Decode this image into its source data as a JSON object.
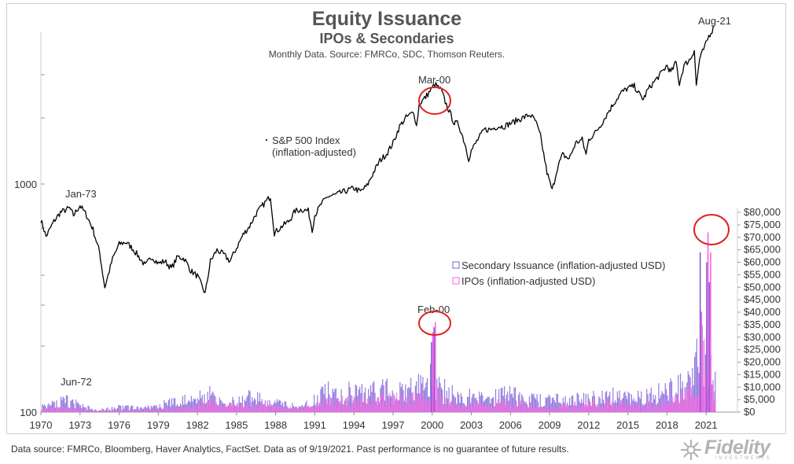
{
  "chart_data": {
    "type": "line+bar",
    "title": "Equity Issuance",
    "subtitle": "IPOs & Secondaries",
    "source_line": "Monthly Data. Source: FMRCo, SDC, Thomson Reuters.",
    "x_ticks": [
      "1970",
      "1973",
      "1976",
      "1979",
      "1982",
      "1985",
      "1988",
      "1991",
      "1994",
      "1997",
      "2000",
      "2003",
      "2006",
      "2009",
      "2012",
      "2015",
      "2018",
      "2021"
    ],
    "x_range": [
      1970,
      2023.4
    ],
    "left_axis": {
      "scale": "log",
      "ticks": [
        "1000",
        "100"
      ],
      "range": [
        100,
        5000
      ]
    },
    "right_axis": {
      "ticks": [
        "$80,000",
        "$75,000",
        "$70,000",
        "$65,000",
        "$60,000",
        "$55,000",
        "$50,000",
        "$45,000",
        "$40,000",
        "$35,000",
        "$30,000",
        "$25,000",
        "$20,000",
        "$15,000",
        "$10,000",
        "$5,000",
        "$0"
      ],
      "range": [
        0,
        80000
      ]
    },
    "series": [
      {
        "name": "S&P 500 Index (inflation-adjusted)",
        "label_line1": "S&P 500 Index",
        "label_line2": "(inflation-adjusted)",
        "type": "line",
        "axis": "left",
        "color": "#000000",
        "points": [
          [
            1970.0,
            660
          ],
          [
            1970.4,
            560
          ],
          [
            1971.0,
            650
          ],
          [
            1971.5,
            710
          ],
          [
            1972.2,
            740
          ],
          [
            1972.5,
            690
          ],
          [
            1973.0,
            760
          ],
          [
            1973.5,
            690
          ],
          [
            1974.0,
            600
          ],
          [
            1974.5,
            480
          ],
          [
            1974.9,
            340
          ],
          [
            1975.5,
            450
          ],
          [
            1976.0,
            520
          ],
          [
            1976.5,
            530
          ],
          [
            1977.0,
            500
          ],
          [
            1977.5,
            460
          ],
          [
            1978.0,
            420
          ],
          [
            1978.5,
            460
          ],
          [
            1979.0,
            430
          ],
          [
            1979.5,
            440
          ],
          [
            1980.0,
            410
          ],
          [
            1980.5,
            460
          ],
          [
            1981.0,
            450
          ],
          [
            1981.5,
            400
          ],
          [
            1982.0,
            380
          ],
          [
            1982.6,
            320
          ],
          [
            1983.0,
            440
          ],
          [
            1983.5,
            490
          ],
          [
            1984.0,
            470
          ],
          [
            1984.5,
            440
          ],
          [
            1985.0,
            500
          ],
          [
            1985.5,
            570
          ],
          [
            1986.0,
            620
          ],
          [
            1986.5,
            700
          ],
          [
            1987.0,
            760
          ],
          [
            1987.6,
            830
          ],
          [
            1987.9,
            580
          ],
          [
            1988.5,
            620
          ],
          [
            1989.0,
            650
          ],
          [
            1989.5,
            720
          ],
          [
            1990.0,
            730
          ],
          [
            1990.5,
            720
          ],
          [
            1990.8,
            600
          ],
          [
            1991.0,
            690
          ],
          [
            1991.5,
            770
          ],
          [
            1992.0,
            830
          ],
          [
            1992.5,
            840
          ],
          [
            1993.0,
            860
          ],
          [
            1993.5,
            880
          ],
          [
            1994.0,
            900
          ],
          [
            1994.5,
            870
          ],
          [
            1995.0,
            920
          ],
          [
            1995.5,
            1050
          ],
          [
            1996.0,
            1180
          ],
          [
            1996.5,
            1260
          ],
          [
            1997.0,
            1400
          ],
          [
            1997.5,
            1650
          ],
          [
            1998.0,
            1800
          ],
          [
            1998.6,
            1900
          ],
          [
            1998.8,
            1650
          ],
          [
            1999.0,
            2050
          ],
          [
            1999.5,
            2200
          ],
          [
            2000.0,
            2400
          ],
          [
            2000.2,
            2500
          ],
          [
            2000.7,
            2350
          ],
          [
            2001.0,
            2100
          ],
          [
            2001.7,
            1700
          ],
          [
            2002.0,
            1700
          ],
          [
            2002.5,
            1400
          ],
          [
            2002.8,
            1200
          ],
          [
            2003.0,
            1300
          ],
          [
            2003.5,
            1450
          ],
          [
            2004.0,
            1600
          ],
          [
            2004.5,
            1600
          ],
          [
            2005.0,
            1650
          ],
          [
            2005.5,
            1650
          ],
          [
            2006.0,
            1700
          ],
          [
            2006.5,
            1750
          ],
          [
            2007.0,
            1800
          ],
          [
            2007.5,
            1850
          ],
          [
            2007.9,
            1750
          ],
          [
            2008.3,
            1500
          ],
          [
            2008.8,
            1050
          ],
          [
            2009.2,
            880
          ],
          [
            2009.6,
            1100
          ],
          [
            2010.0,
            1250
          ],
          [
            2010.5,
            1200
          ],
          [
            2011.0,
            1400
          ],
          [
            2011.5,
            1450
          ],
          [
            2011.8,
            1250
          ],
          [
            2012.0,
            1450
          ],
          [
            2012.5,
            1550
          ],
          [
            2013.0,
            1700
          ],
          [
            2013.5,
            1900
          ],
          [
            2014.0,
            2100
          ],
          [
            2014.5,
            2300
          ],
          [
            2015.0,
            2400
          ],
          [
            2015.5,
            2450
          ],
          [
            2015.9,
            2250
          ],
          [
            2016.2,
            2150
          ],
          [
            2016.5,
            2350
          ],
          [
            2017.0,
            2550
          ],
          [
            2017.5,
            2750
          ],
          [
            2018.0,
            3000
          ],
          [
            2018.3,
            2800
          ],
          [
            2018.7,
            3100
          ],
          [
            2018.95,
            2500
          ],
          [
            2019.3,
            3000
          ],
          [
            2019.8,
            3200
          ],
          [
            2020.1,
            3500
          ],
          [
            2020.25,
            2450
          ],
          [
            2020.5,
            3200
          ],
          [
            2020.9,
            3600
          ],
          [
            2021.2,
            4000
          ],
          [
            2021.64,
            4400
          ]
        ]
      },
      {
        "name": "Secondary Issuance (inflation-adjusted USD)",
        "type": "bar",
        "axis": "right",
        "color": "#8060d8"
      },
      {
        "name": "IPOs (inflation-adjusted USD)",
        "type": "bar",
        "axis": "right",
        "color": "#ff60e0"
      }
    ],
    "issuance_envelope": {
      "x": [
        1970,
        1972,
        1974,
        1976,
        1978,
        1980,
        1982,
        1983,
        1984,
        1986,
        1988,
        1990,
        1992,
        1994,
        1996,
        1997,
        1998,
        1999,
        2000,
        2001,
        2002,
        2004,
        2006,
        2008,
        2009,
        2010,
        2012,
        2014,
        2016,
        2018,
        2019,
        2020,
        2020.5,
        2021,
        2021.6,
        2022
      ],
      "secondary": [
        3000,
        6000,
        1200,
        2500,
        2000,
        5000,
        7000,
        9500,
        4000,
        8000,
        4500,
        2500,
        11000,
        10000,
        11000,
        13000,
        11000,
        13000,
        17000,
        11000,
        7500,
        8500,
        9000,
        6000,
        8000,
        6000,
        7000,
        9000,
        7000,
        11000,
        13000,
        22000,
        38000,
        34000,
        16000,
        3000
      ],
      "ipo": [
        2000,
        2500,
        500,
        1000,
        900,
        2000,
        3500,
        5500,
        3000,
        5000,
        3000,
        2000,
        6000,
        6000,
        7000,
        7500,
        6000,
        9000,
        11000,
        6000,
        3000,
        5000,
        5500,
        3000,
        1500,
        3500,
        4500,
        5500,
        4000,
        5000,
        7500,
        14000,
        32000,
        28000,
        9000,
        1000
      ],
      "peaks": [
        {
          "x": 2000.1,
          "secondary": 34000,
          "ipo": 36000
        },
        {
          "x": 1999.9,
          "secondary": 28000,
          "ipo": 32000
        },
        {
          "x": 2020.5,
          "secondary": 64000,
          "ipo": 40000
        },
        {
          "x": 2021.0,
          "secondary": 60000,
          "ipo": 72000
        },
        {
          "x": 2021.2,
          "secondary": 52000,
          "ipo": 64000
        }
      ]
    },
    "annotations": [
      {
        "text": "Jan-73",
        "x": 1973.0,
        "target": "index"
      },
      {
        "text": "Mar-00",
        "x": 2000.2,
        "target": "index",
        "circled": true
      },
      {
        "text": "Aug-21",
        "x": 2021.64,
        "target": "index"
      },
      {
        "text": "Feb-00",
        "x": 2000.1,
        "target": "issuance",
        "circled": true
      },
      {
        "text": "Jun-72",
        "x": 1972.4,
        "target": "issuance"
      },
      {
        "text": "",
        "x": 2021.0,
        "target": "issuance",
        "circled": true
      }
    ],
    "grid": false,
    "legend_position": "center-right"
  },
  "footer": {
    "note": "Data source: FMRCo, Bloomberg, Haver Analytics, FactSet. Data as of 9/19/2021. Past performance is no guarantee of future results.",
    "brand": "Fidelity",
    "brand_sub": "INVESTMENTS"
  },
  "colors": {
    "index_line": "#000000",
    "secondary": "#8060d8",
    "ipo": "#ff60e0",
    "highlight_circle": "#e02020",
    "axis_text": "#444444",
    "brand": "#b3b3b3"
  }
}
